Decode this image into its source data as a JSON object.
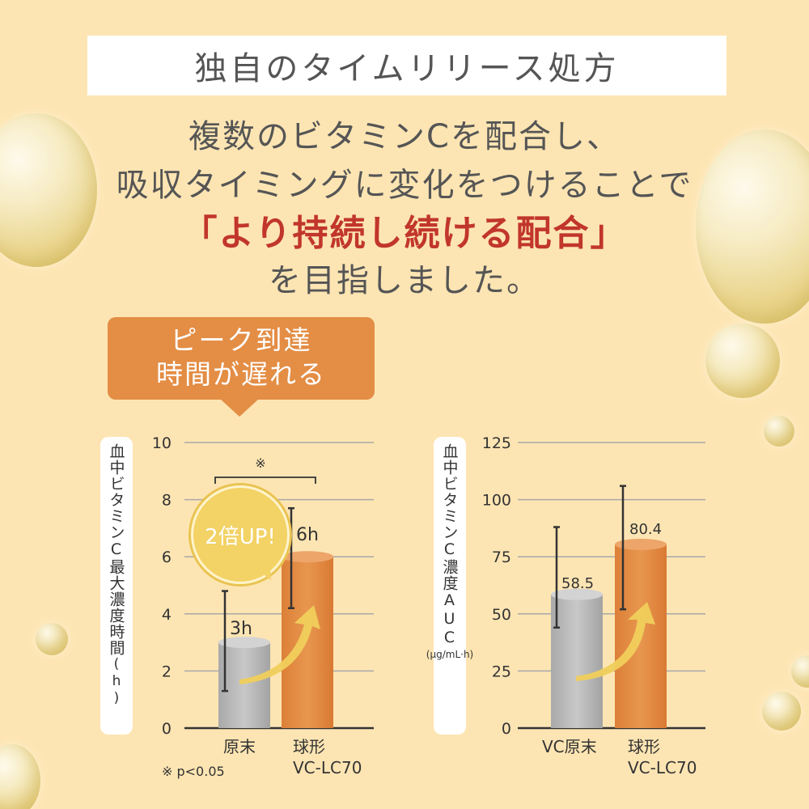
{
  "header": {
    "title": "独自のタイムリリース処方",
    "line1": "複数のビタミンCを配合し、",
    "line2": "吸収タイミングに変化をつけることで",
    "highlight": "「より持続し続ける配合」",
    "line4": "を目指しました。"
  },
  "callout": {
    "line1": "ピーク到達",
    "line2": "時間が遅れる"
  },
  "badge": {
    "text": "2倍UP!"
  },
  "footnote": "※ p<0.05",
  "colors": {
    "gray_bar": "#b9b9b9",
    "orange_bar": "#e38d45",
    "accent_red": "#c1362b",
    "gold": "#f3d266"
  },
  "chart_data": [
    {
      "type": "bar",
      "ylabel": "血中ビタミンC最大濃度時間",
      "ylabel_unit": "(h)",
      "categories": [
        "原末",
        "球形\nVC-LC70"
      ],
      "category_lines": [
        [
          "原末"
        ],
        [
          "球形",
          "VC-LC70"
        ]
      ],
      "values": [
        3,
        6
      ],
      "value_labels": [
        "3h",
        "6h"
      ],
      "error_bars": [
        [
          1.3,
          4.8
        ],
        [
          4.2,
          7.7
        ]
      ],
      "ylim": [
        0,
        10
      ],
      "yticks": [
        "0",
        "2",
        "4",
        "6",
        "8",
        "10"
      ],
      "ytick_values": [
        0,
        2,
        4,
        6,
        8,
        10
      ],
      "significance": "※",
      "grid": true
    },
    {
      "type": "bar",
      "ylabel": "血中ビタミンC濃度AUC",
      "ylabel_unit": "(μg/mL·h)",
      "categories": [
        "VC原末",
        "球形\nVC-LC70"
      ],
      "category_lines": [
        [
          "VC原末"
        ],
        [
          "球形",
          "VC-LC70"
        ]
      ],
      "values": [
        58.5,
        80.4
      ],
      "value_labels": [
        "58.5",
        "80.4"
      ],
      "error_bars": [
        [
          44,
          88
        ],
        [
          52,
          106
        ]
      ],
      "ylim": [
        0,
        125
      ],
      "yticks": [
        "0",
        "25",
        "50",
        "75",
        "100",
        "125"
      ],
      "ytick_values": [
        0,
        25,
        50,
        75,
        100,
        125
      ],
      "grid": true
    }
  ]
}
